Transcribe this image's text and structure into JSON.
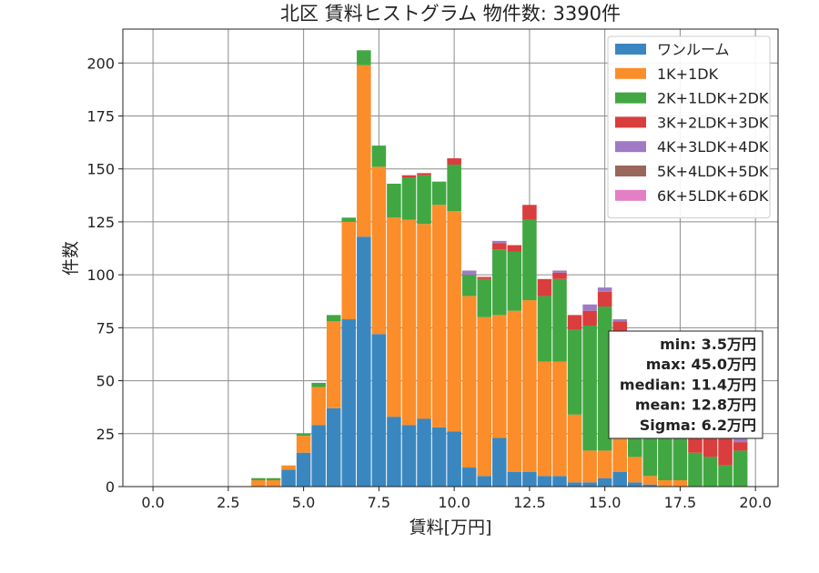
{
  "chart_data": {
    "type": "bar",
    "stacked": true,
    "title": "北区 賃料ヒストグラム 物件数: 3390件",
    "xlabel": "賃料[万円]",
    "ylabel": "件数",
    "xlim": [
      -1.0,
      20.75
    ],
    "ylim": [
      0,
      216
    ],
    "xticks": [
      "0.0",
      "2.5",
      "5.0",
      "7.5",
      "10.0",
      "12.5",
      "15.0",
      "17.5",
      "20.0"
    ],
    "yticks": [
      "0",
      "25",
      "50",
      "75",
      "100",
      "125",
      "150",
      "175",
      "200"
    ],
    "grid": true,
    "legend_position": "top-right",
    "bin_width": 0.5,
    "bin_centers": [
      3.5,
      4.0,
      4.5,
      5.0,
      5.5,
      6.0,
      6.5,
      7.0,
      7.5,
      8.0,
      8.5,
      9.0,
      9.5,
      10.0,
      10.5,
      11.0,
      11.5,
      12.0,
      12.5,
      13.0,
      13.5,
      14.0,
      14.5,
      15.0,
      15.5,
      16.0,
      16.5,
      17.0,
      17.5,
      18.0,
      18.5,
      19.0,
      19.5
    ],
    "series": [
      {
        "name": "ワンルーム",
        "color": "#3a87c0",
        "values": [
          0,
          0,
          8,
          16,
          29,
          37,
          79,
          118,
          72,
          33,
          29,
          32,
          28,
          26,
          9,
          5,
          23,
          7,
          7,
          5,
          5,
          2,
          2,
          4,
          7,
          2,
          1,
          0,
          0,
          0,
          0,
          0,
          0
        ]
      },
      {
        "name": "1K+1DK",
        "color": "#fb8d2a",
        "values": [
          3,
          3,
          2,
          8,
          18,
          41,
          46,
          81,
          79,
          94,
          97,
          92,
          105,
          104,
          81,
          75,
          58,
          76,
          81,
          54,
          54,
          32,
          15,
          13,
          40,
          12,
          4,
          3,
          3,
          0,
          0,
          0,
          0
        ]
      },
      {
        "name": "2K+1LDK+2DK",
        "color": "#41a742",
        "values": [
          1,
          1,
          0,
          1,
          2,
          3,
          2,
          7,
          10,
          16,
          20,
          23,
          11,
          22,
          10,
          18,
          31,
          28,
          38,
          31,
          39,
          40,
          59,
          68,
          25,
          25,
          29,
          31,
          33,
          16,
          14,
          10,
          17
        ]
      },
      {
        "name": "3K+2LDK+3DK",
        "color": "#d93d3d",
        "values": [
          0,
          0,
          0,
          0,
          0,
          0,
          0,
          0,
          0,
          0,
          1,
          1,
          0,
          3,
          0,
          1,
          3,
          3,
          7,
          8,
          3,
          7,
          7,
          7,
          6,
          13,
          12,
          13,
          16,
          20,
          19,
          15,
          4
        ]
      },
      {
        "name": "4K+3LDK+4DK",
        "color": "#a07ac4",
        "values": [
          0,
          0,
          0,
          0,
          0,
          0,
          0,
          0,
          0,
          0,
          0,
          0,
          0,
          0,
          2,
          0,
          1,
          0,
          0,
          0,
          1,
          0,
          3,
          2,
          1,
          2,
          1,
          2,
          3,
          4,
          2,
          2,
          2
        ]
      },
      {
        "name": "5K+4LDK+5DK",
        "color": "#9a675d",
        "values": [
          0,
          0,
          0,
          0,
          0,
          0,
          0,
          0,
          0,
          0,
          0,
          0,
          0,
          0,
          0,
          0,
          0,
          0,
          0,
          0,
          0,
          0,
          0,
          0,
          0,
          0,
          0,
          0,
          0,
          0,
          0,
          0,
          0
        ]
      },
      {
        "name": "6K+5LDK+6DK",
        "color": "#e37fc5",
        "values": [
          0,
          0,
          0,
          0,
          0,
          0,
          0,
          0,
          0,
          0,
          0,
          0,
          0,
          0,
          0,
          0,
          0,
          0,
          0,
          0,
          0,
          0,
          0,
          0,
          0,
          0,
          0,
          0,
          0,
          0,
          0,
          0,
          0
        ]
      }
    ],
    "stats_box": [
      "min: 3.5万円",
      "max: 45.0万円",
      "median: 11.4万円",
      "mean: 12.8万円",
      "Sigma: 6.2万円"
    ]
  }
}
